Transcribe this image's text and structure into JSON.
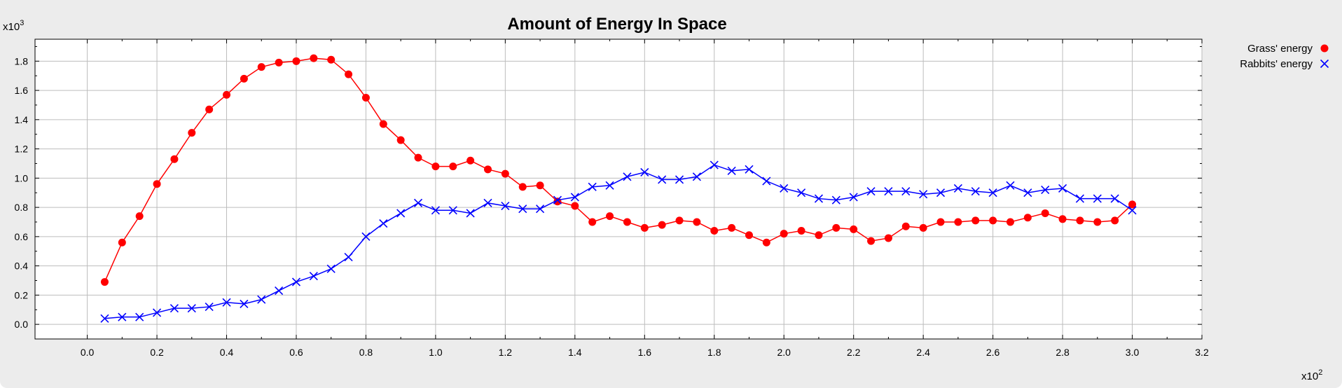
{
  "chart_data": {
    "type": "line",
    "title": "Amount of Energy In Space",
    "xlabel": "",
    "ylabel": "",
    "x_multiplier": {
      "base": "x10",
      "exponent": "2"
    },
    "y_multiplier": {
      "base": "x10",
      "exponent": "3"
    },
    "xlim": [
      -0.15,
      3.2
    ],
    "ylim": [
      -0.1,
      1.95
    ],
    "x_ticks": [
      0.0,
      0.2,
      0.4,
      0.6,
      0.8,
      1.0,
      1.2,
      1.4,
      1.6,
      1.8,
      2.0,
      2.2,
      2.4,
      2.6,
      2.8,
      3.0,
      3.2
    ],
    "x_tick_labels": [
      "0.0",
      "0.2",
      "0.4",
      "0.6",
      "0.8",
      "1.0",
      "1.2",
      "1.4",
      "1.6",
      "1.8",
      "2.0",
      "2.2",
      "2.4",
      "2.6",
      "2.8",
      "3.0",
      "3.2"
    ],
    "y_ticks": [
      0.0,
      0.2,
      0.4,
      0.6,
      0.8,
      1.0,
      1.2,
      1.4,
      1.6,
      1.8
    ],
    "y_tick_labels": [
      "0.0",
      "0.2",
      "0.4",
      "0.6",
      "0.8",
      "1.0",
      "1.2",
      "1.4",
      "1.6",
      "1.8"
    ],
    "x_minor_ticks": [
      0.1,
      0.3,
      0.5,
      0.7,
      0.9,
      1.1,
      1.3,
      1.5,
      1.7,
      1.9,
      2.1,
      2.3,
      2.5,
      2.7,
      2.9,
      3.1
    ],
    "y_minor_ticks": [
      0.1,
      0.3,
      0.5,
      0.7,
      0.9,
      1.1,
      1.3,
      1.5,
      1.7,
      1.9
    ],
    "grid": true,
    "legend_position": "top-right-outside",
    "x": [
      0.05,
      0.1,
      0.15,
      0.2,
      0.25,
      0.3,
      0.35,
      0.4,
      0.45,
      0.5,
      0.55,
      0.6,
      0.65,
      0.7,
      0.75,
      0.8,
      0.85,
      0.9,
      0.95,
      1.0,
      1.05,
      1.1,
      1.15,
      1.2,
      1.25,
      1.3,
      1.35,
      1.4,
      1.45,
      1.5,
      1.55,
      1.6,
      1.65,
      1.7,
      1.75,
      1.8,
      1.85,
      1.9,
      1.95,
      2.0,
      2.05,
      2.1,
      2.15,
      2.2,
      2.25,
      2.3,
      2.35,
      2.4,
      2.45,
      2.5,
      2.55,
      2.6,
      2.65,
      2.7,
      2.75,
      2.8,
      2.85,
      2.9,
      2.95,
      3.0
    ],
    "series": [
      {
        "name": "Grass' energy",
        "color": "#ff0000",
        "marker": "circle",
        "values": [
          0.29,
          0.56,
          0.74,
          0.96,
          1.13,
          1.31,
          1.47,
          1.57,
          1.68,
          1.76,
          1.79,
          1.8,
          1.82,
          1.81,
          1.71,
          1.55,
          1.37,
          1.26,
          1.14,
          1.08,
          1.08,
          1.12,
          1.06,
          1.03,
          0.94,
          0.95,
          0.84,
          0.81,
          0.7,
          0.74,
          0.7,
          0.66,
          0.68,
          0.71,
          0.7,
          0.64,
          0.66,
          0.61,
          0.56,
          0.62,
          0.64,
          0.61,
          0.66,
          0.65,
          0.57,
          0.59,
          0.67,
          0.66,
          0.7,
          0.7,
          0.71,
          0.71,
          0.7,
          0.73,
          0.76,
          0.72,
          0.71,
          0.7,
          0.71,
          0.82
        ]
      },
      {
        "name": "Rabbits' energy",
        "color": "#0000ff",
        "marker": "x",
        "values": [
          0.04,
          0.05,
          0.05,
          0.08,
          0.11,
          0.11,
          0.12,
          0.15,
          0.14,
          0.17,
          0.23,
          0.29,
          0.33,
          0.38,
          0.46,
          0.6,
          0.69,
          0.76,
          0.83,
          0.78,
          0.78,
          0.76,
          0.83,
          0.81,
          0.79,
          0.79,
          0.85,
          0.87,
          0.94,
          0.95,
          1.01,
          1.04,
          0.99,
          0.99,
          1.01,
          1.09,
          1.05,
          1.06,
          0.98,
          0.93,
          0.9,
          0.86,
          0.85,
          0.87,
          0.91,
          0.91,
          0.91,
          0.89,
          0.9,
          0.93,
          0.91,
          0.9,
          0.95,
          0.9,
          0.92,
          0.93,
          0.86,
          0.86,
          0.86,
          0.78
        ]
      }
    ]
  }
}
